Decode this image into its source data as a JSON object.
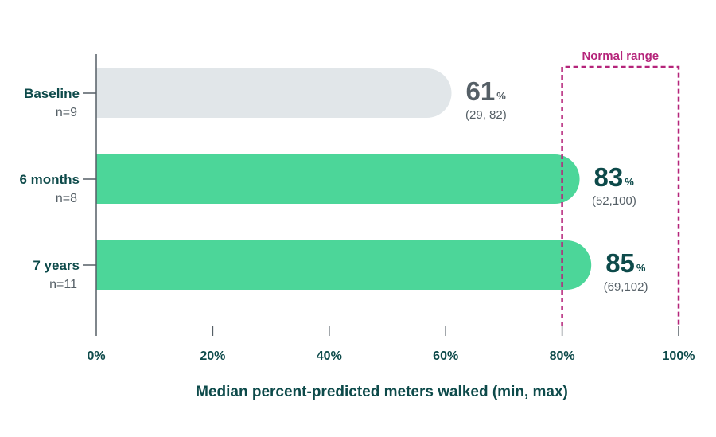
{
  "chart_data": {
    "type": "bar",
    "orientation": "horizontal",
    "categories": [
      "Baseline",
      "6 months",
      "7 years"
    ],
    "sample_sizes": [
      "n=9",
      "n=8",
      "n=11"
    ],
    "values": [
      61,
      83,
      85
    ],
    "value_labels": [
      "61",
      "83",
      "85"
    ],
    "value_unit": "%",
    "ranges": [
      "(29, 82)",
      "(52,100)",
      "(69,102)"
    ],
    "xlabel": "Median percent-predicted meters walked (min, max)",
    "xlim": [
      0,
      100
    ],
    "xticks": [
      0,
      20,
      40,
      60,
      80,
      100
    ],
    "xtick_labels": [
      "0%",
      "20%",
      "40%",
      "60%",
      "80%",
      "100%"
    ],
    "grid": false,
    "reference_region": {
      "label": "Normal range",
      "from": 80,
      "to": 100
    },
    "colors": {
      "baseline_bar": "#e1e6e9",
      "followup_bar": "#4cd699",
      "baseline_value": "#555f66",
      "followup_value": "#0d4a4a",
      "normal_range": "#b5247a",
      "axis": "#555f66",
      "text_dark": "#0d4a4a"
    }
  }
}
